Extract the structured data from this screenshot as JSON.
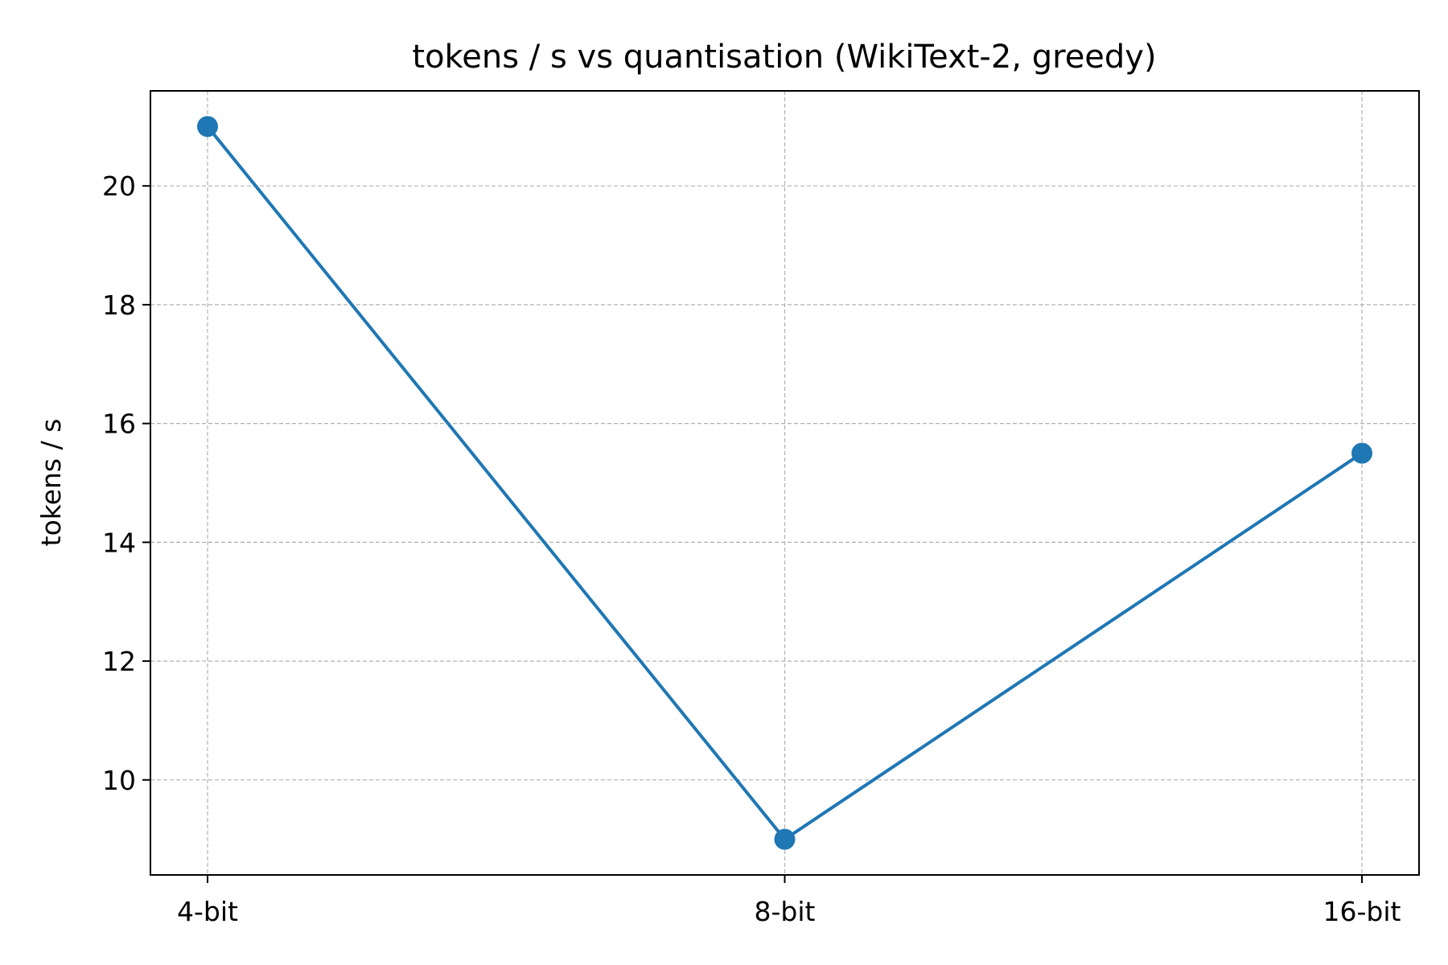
{
  "chart_data": {
    "type": "line",
    "title": "tokens / s vs quantisation (WikiText-2, greedy)",
    "xlabel": "",
    "ylabel": "tokens / s",
    "categories": [
      "4-bit",
      "8-bit",
      "16-bit"
    ],
    "series": [
      {
        "values": [
          21.0,
          9.0,
          15.5
        ],
        "color": "#1f77b4",
        "marker": "circle"
      }
    ],
    "ylim": [
      8.4,
      21.6
    ],
    "yticks": [
      10,
      12,
      14,
      16,
      18,
      20
    ],
    "grid": true,
    "legend": "none"
  }
}
